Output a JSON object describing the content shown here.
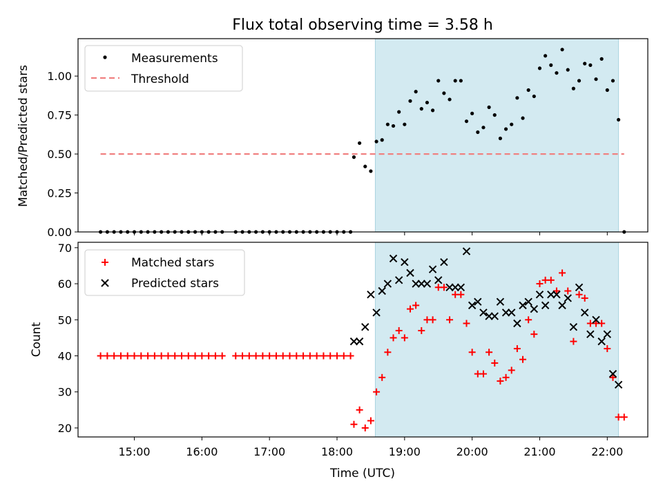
{
  "title": "Flux total observing time = 3.58 h",
  "xlabel": "Time (UTC)",
  "x_tick_labels": [
    "15:00",
    "16:00",
    "17:00",
    "18:00",
    "19:00",
    "20:00",
    "21:00",
    "22:00"
  ],
  "shaded_interval": {
    "start": "18:34",
    "end": "22:10",
    "color": "#d3eaf1"
  },
  "chart_data": [
    {
      "type": "scatter",
      "title": "Flux total observing time = 3.58 h",
      "xlabel": "",
      "ylabel": "Matched/Predicted stars",
      "xlim": [
        "14:10",
        "22:36"
      ],
      "ylim": [
        0,
        1.24
      ],
      "y_ticks": [
        "0.00",
        "0.25",
        "0.50",
        "0.75",
        "1.00"
      ],
      "legend_position": "top-left",
      "series": [
        {
          "name": "Measurements",
          "marker": "dot",
          "color": "#000000",
          "points": [
            [
              "14:30",
              0
            ],
            [
              "14:36",
              0
            ],
            [
              "14:42",
              0
            ],
            [
              "14:48",
              0
            ],
            [
              "14:54",
              0
            ],
            [
              "15:00",
              0
            ],
            [
              "15:06",
              0
            ],
            [
              "15:12",
              0
            ],
            [
              "15:18",
              0
            ],
            [
              "15:24",
              0
            ],
            [
              "15:30",
              0
            ],
            [
              "15:36",
              0
            ],
            [
              "15:42",
              0
            ],
            [
              "15:48",
              0
            ],
            [
              "15:54",
              0
            ],
            [
              "16:00",
              0
            ],
            [
              "16:06",
              0
            ],
            [
              "16:12",
              0
            ],
            [
              "16:18",
              0
            ],
            [
              "16:30",
              0
            ],
            [
              "16:36",
              0
            ],
            [
              "16:42",
              0
            ],
            [
              "16:48",
              0
            ],
            [
              "16:54",
              0
            ],
            [
              "17:00",
              0
            ],
            [
              "17:06",
              0
            ],
            [
              "17:12",
              0
            ],
            [
              "17:18",
              0
            ],
            [
              "17:24",
              0
            ],
            [
              "17:30",
              0
            ],
            [
              "17:36",
              0
            ],
            [
              "17:42",
              0
            ],
            [
              "17:48",
              0
            ],
            [
              "17:54",
              0
            ],
            [
              "18:00",
              0
            ],
            [
              "18:06",
              0
            ],
            [
              "18:12",
              0
            ],
            [
              "18:15",
              0.48
            ],
            [
              "18:20",
              0.57
            ],
            [
              "18:25",
              0.42
            ],
            [
              "18:30",
              0.39
            ],
            [
              "18:35",
              0.58
            ],
            [
              "18:40",
              0.59
            ],
            [
              "18:45",
              0.69
            ],
            [
              "18:50",
              0.68
            ],
            [
              "18:55",
              0.77
            ],
            [
              "19:00",
              0.69
            ],
            [
              "19:05",
              0.84
            ],
            [
              "19:10",
              0.9
            ],
            [
              "19:15",
              0.79
            ],
            [
              "19:20",
              0.83
            ],
            [
              "19:25",
              0.78
            ],
            [
              "19:30",
              0.97
            ],
            [
              "19:35",
              0.89
            ],
            [
              "19:40",
              0.85
            ],
            [
              "19:45",
              0.97
            ],
            [
              "19:50",
              0.97
            ],
            [
              "19:55",
              0.71
            ],
            [
              "20:00",
              0.76
            ],
            [
              "20:05",
              0.64
            ],
            [
              "20:10",
              0.67
            ],
            [
              "20:15",
              0.8
            ],
            [
              "20:20",
              0.75
            ],
            [
              "20:25",
              0.6
            ],
            [
              "20:30",
              0.66
            ],
            [
              "20:35",
              0.69
            ],
            [
              "20:40",
              0.86
            ],
            [
              "20:45",
              0.73
            ],
            [
              "20:50",
              0.91
            ],
            [
              "20:55",
              0.87
            ],
            [
              "21:00",
              1.05
            ],
            [
              "21:05",
              1.13
            ],
            [
              "21:10",
              1.07
            ],
            [
              "21:15",
              1.02
            ],
            [
              "21:20",
              1.17
            ],
            [
              "21:25",
              1.04
            ],
            [
              "21:30",
              0.92
            ],
            [
              "21:35",
              0.97
            ],
            [
              "21:40",
              1.08
            ],
            [
              "21:45",
              1.07
            ],
            [
              "21:50",
              0.98
            ],
            [
              "21:55",
              1.11
            ],
            [
              "22:00",
              0.91
            ],
            [
              "22:05",
              0.97
            ],
            [
              "22:10",
              0.72
            ],
            [
              "22:15",
              0
            ]
          ]
        },
        {
          "name": "Threshold",
          "style": "dashed",
          "color": "#f08080",
          "points": [
            [
              "14:30",
              0.5
            ],
            [
              "22:15",
              0.5
            ]
          ]
        }
      ]
    },
    {
      "type": "scatter",
      "title": "",
      "xlabel": "Time (UTC)",
      "ylabel": "Count",
      "xlim": [
        "14:10",
        "22:36"
      ],
      "ylim": [
        17.5,
        71.5
      ],
      "y_ticks": [
        "20",
        "30",
        "40",
        "50",
        "60",
        "70"
      ],
      "legend_position": "top-left",
      "series": [
        {
          "name": "Matched stars",
          "marker": "plus",
          "color": "#ff0000",
          "points": [
            [
              "14:30",
              40
            ],
            [
              "14:36",
              40
            ],
            [
              "14:42",
              40
            ],
            [
              "14:48",
              40
            ],
            [
              "14:54",
              40
            ],
            [
              "15:00",
              40
            ],
            [
              "15:06",
              40
            ],
            [
              "15:12",
              40
            ],
            [
              "15:18",
              40
            ],
            [
              "15:24",
              40
            ],
            [
              "15:30",
              40
            ],
            [
              "15:36",
              40
            ],
            [
              "15:42",
              40
            ],
            [
              "15:48",
              40
            ],
            [
              "15:54",
              40
            ],
            [
              "16:00",
              40
            ],
            [
              "16:06",
              40
            ],
            [
              "16:12",
              40
            ],
            [
              "16:18",
              40
            ],
            [
              "16:30",
              40
            ],
            [
              "16:36",
              40
            ],
            [
              "16:42",
              40
            ],
            [
              "16:48",
              40
            ],
            [
              "16:54",
              40
            ],
            [
              "17:00",
              40
            ],
            [
              "17:06",
              40
            ],
            [
              "17:12",
              40
            ],
            [
              "17:18",
              40
            ],
            [
              "17:24",
              40
            ],
            [
              "17:30",
              40
            ],
            [
              "17:36",
              40
            ],
            [
              "17:42",
              40
            ],
            [
              "17:48",
              40
            ],
            [
              "17:54",
              40
            ],
            [
              "18:00",
              40
            ],
            [
              "18:06",
              40
            ],
            [
              "18:12",
              40
            ],
            [
              "18:15",
              21
            ],
            [
              "18:20",
              25
            ],
            [
              "18:25",
              20
            ],
            [
              "18:30",
              22
            ],
            [
              "18:35",
              30
            ],
            [
              "18:40",
              34
            ],
            [
              "18:45",
              41
            ],
            [
              "18:50",
              45
            ],
            [
              "18:55",
              47
            ],
            [
              "19:00",
              45
            ],
            [
              "19:05",
              53
            ],
            [
              "19:10",
              54
            ],
            [
              "19:15",
              47
            ],
            [
              "19:20",
              50
            ],
            [
              "19:25",
              50
            ],
            [
              "19:30",
              59
            ],
            [
              "19:35",
              59
            ],
            [
              "19:40",
              50
            ],
            [
              "19:45",
              57
            ],
            [
              "19:50",
              57
            ],
            [
              "19:55",
              49
            ],
            [
              "20:00",
              41
            ],
            [
              "20:05",
              35
            ],
            [
              "20:10",
              35
            ],
            [
              "20:15",
              41
            ],
            [
              "20:20",
              38
            ],
            [
              "20:25",
              33
            ],
            [
              "20:30",
              34
            ],
            [
              "20:35",
              36
            ],
            [
              "20:40",
              42
            ],
            [
              "20:45",
              39
            ],
            [
              "20:50",
              50
            ],
            [
              "20:55",
              46
            ],
            [
              "21:00",
              60
            ],
            [
              "21:05",
              61
            ],
            [
              "21:10",
              61
            ],
            [
              "21:15",
              58
            ],
            [
              "21:20",
              63
            ],
            [
              "21:25",
              58
            ],
            [
              "21:30",
              44
            ],
            [
              "21:35",
              57
            ],
            [
              "21:40",
              56
            ],
            [
              "21:45",
              49
            ],
            [
              "21:50",
              49
            ],
            [
              "21:55",
              49
            ],
            [
              "22:00",
              42
            ],
            [
              "22:05",
              34
            ],
            [
              "22:10",
              23
            ],
            [
              "22:15",
              23
            ]
          ]
        },
        {
          "name": "Predicted stars",
          "marker": "x",
          "color": "#000000",
          "points": [
            [
              "18:15",
              44
            ],
            [
              "18:20",
              44
            ],
            [
              "18:25",
              48
            ],
            [
              "18:30",
              57
            ],
            [
              "18:35",
              52
            ],
            [
              "18:40",
              58
            ],
            [
              "18:45",
              60
            ],
            [
              "18:50",
              67
            ],
            [
              "18:55",
              61
            ],
            [
              "19:00",
              66
            ],
            [
              "19:05",
              63
            ],
            [
              "19:10",
              60
            ],
            [
              "19:15",
              60
            ],
            [
              "19:20",
              60
            ],
            [
              "19:25",
              64
            ],
            [
              "19:30",
              61
            ],
            [
              "19:35",
              66
            ],
            [
              "19:40",
              59
            ],
            [
              "19:45",
              59
            ],
            [
              "19:50",
              59
            ],
            [
              "19:55",
              69
            ],
            [
              "20:00",
              54
            ],
            [
              "20:05",
              55
            ],
            [
              "20:10",
              52
            ],
            [
              "20:15",
              51
            ],
            [
              "20:20",
              51
            ],
            [
              "20:25",
              55
            ],
            [
              "20:30",
              52
            ],
            [
              "20:35",
              52
            ],
            [
              "20:40",
              49
            ],
            [
              "20:45",
              54
            ],
            [
              "20:50",
              55
            ],
            [
              "20:55",
              53
            ],
            [
              "21:00",
              57
            ],
            [
              "21:05",
              54
            ],
            [
              "21:10",
              57
            ],
            [
              "21:15",
              57
            ],
            [
              "21:20",
              54
            ],
            [
              "21:25",
              56
            ],
            [
              "21:30",
              48
            ],
            [
              "21:35",
              59
            ],
            [
              "21:40",
              52
            ],
            [
              "21:45",
              46
            ],
            [
              "21:50",
              50
            ],
            [
              "21:55",
              44
            ],
            [
              "22:00",
              46
            ],
            [
              "22:05",
              35
            ],
            [
              "22:10",
              32
            ]
          ]
        }
      ]
    }
  ]
}
